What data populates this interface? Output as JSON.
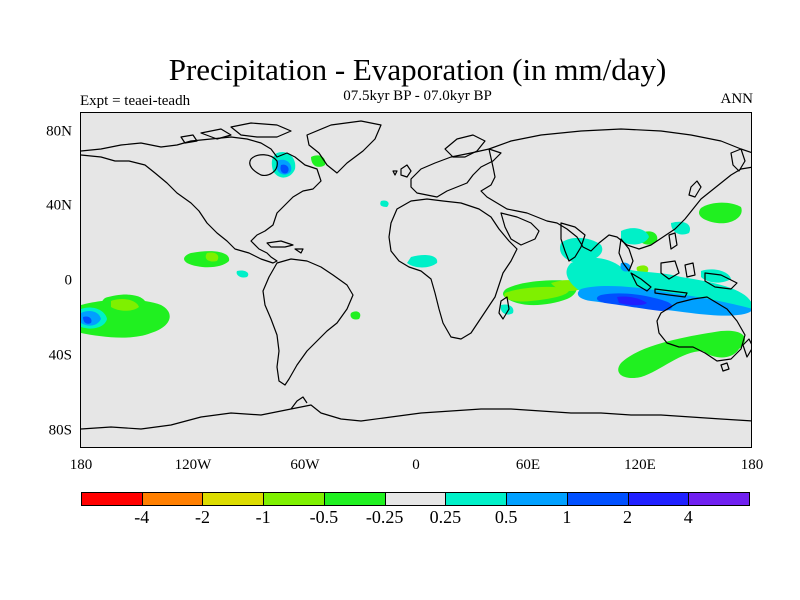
{
  "title": "Precipitation - Evaporation (in mm/day)",
  "subtitle": "07.5kyr BP - 07.0kyr BP",
  "left_label": "Expt = teaei-teadh",
  "right_label": "ANN",
  "lat_labels": [
    "80N",
    "40N",
    "0",
    "40S",
    "80S"
  ],
  "lon_labels": [
    "180",
    "120W",
    "60W",
    "0",
    "60E",
    "120E",
    "180"
  ],
  "legend": {
    "colors": [
      "#ff0000",
      "#ff7f00",
      "#dcdc00",
      "#7ff000",
      "#20f020",
      "#e6e6e6",
      "#00f0c8",
      "#00a0ff",
      "#0050ff",
      "#2020ff",
      "#7020f0"
    ],
    "labels": [
      "-4",
      "-2",
      "-1",
      "-0.5",
      "-0.25",
      "0.25",
      "0.5",
      "1",
      "2",
      "4"
    ]
  }
}
